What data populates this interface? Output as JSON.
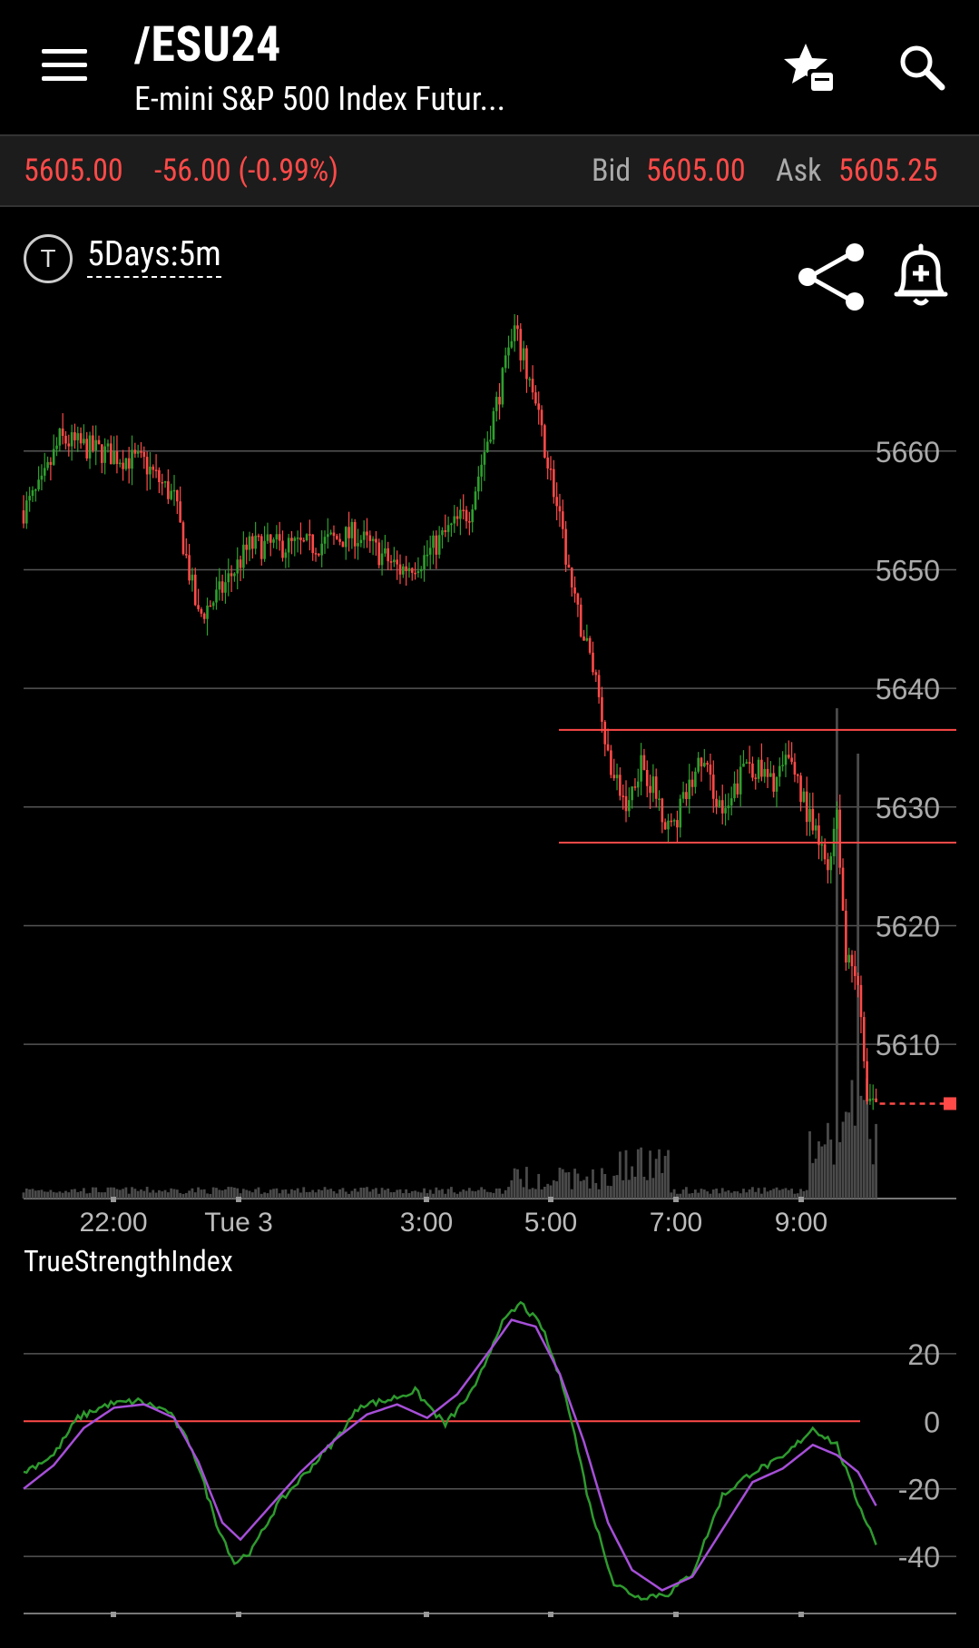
{
  "header": {
    "symbol": "/ESU24",
    "name": "E-mini S&P 500 Index Futur..."
  },
  "quote": {
    "last": "5605.00",
    "change": "-56.00 (-0.99%)",
    "bid_label": "Bid",
    "bid": "5605.00",
    "ask_label": "Ask",
    "ask": "5605.25"
  },
  "chart_controls": {
    "period_icon_letter": "T",
    "period": "5Days:5m"
  },
  "colors": {
    "up": "#2ea02e",
    "down": "#ff4a48",
    "grid": "#555555",
    "tsi_line": "#2e9a2e",
    "tsi_signal": "#a64fd8"
  },
  "icons": [
    "menu-icon",
    "watchlist-star-icon",
    "search-icon",
    "share-icon",
    "add-alert-bell-icon"
  ],
  "chart_data": [
    {
      "type": "candlestick",
      "y_ticks": [
        5660,
        5650,
        5640,
        5630,
        5620,
        5610
      ],
      "ylim": [
        5597,
        5672
      ],
      "x_ticks": [
        "22:00",
        "Tue 3",
        "3:00",
        "5:00",
        "7:00",
        "9:00"
      ],
      "last_price": 5605.0,
      "horizontal_lines": [
        5636.5,
        5627.0
      ],
      "anchors": [
        [
          0,
          5655
        ],
        [
          6,
          5657
        ],
        [
          12,
          5661
        ],
        [
          25,
          5660
        ],
        [
          40,
          5659
        ],
        [
          50,
          5656
        ],
        [
          58,
          5646
        ],
        [
          65,
          5648
        ],
        [
          75,
          5652
        ],
        [
          95,
          5652
        ],
        [
          110,
          5653
        ],
        [
          125,
          5650
        ],
        [
          133,
          5651
        ],
        [
          140,
          5653
        ],
        [
          148,
          5655
        ],
        [
          158,
          5665
        ],
        [
          163,
          5670
        ],
        [
          168,
          5666
        ],
        [
          175,
          5658
        ],
        [
          183,
          5647
        ],
        [
          190,
          5641
        ],
        [
          195,
          5633
        ],
        [
          200,
          5630
        ],
        [
          205,
          5634
        ],
        [
          215,
          5628
        ],
        [
          225,
          5634
        ],
        [
          233,
          5629
        ],
        [
          240,
          5634
        ],
        [
          248,
          5632
        ],
        [
          255,
          5634
        ],
        [
          262,
          5628
        ],
        [
          267,
          5625
        ],
        [
          270,
          5630
        ],
        [
          273,
          5617
        ],
        [
          277,
          5615
        ],
        [
          280,
          5605
        ],
        [
          283,
          5605
        ]
      ],
      "total_bars": 284
    },
    {
      "type": "line",
      "title": "TrueStrengthIndex",
      "y_ticks": [
        20,
        0,
        -20,
        -40
      ],
      "ylim": [
        -55,
        35
      ],
      "zero_line": 0,
      "series": [
        {
          "values": [
            [
              0,
              -15
            ],
            [
              10,
              -10
            ],
            [
              18,
              1
            ],
            [
              28,
              5
            ],
            [
              38,
              6
            ],
            [
              48,
              3
            ],
            [
              56,
              -8
            ],
            [
              64,
              -30
            ],
            [
              70,
              -42
            ],
            [
              76,
              -38
            ],
            [
              84,
              -25
            ],
            [
              94,
              -15
            ],
            [
              104,
              -5
            ],
            [
              112,
              5
            ],
            [
              120,
              6
            ],
            [
              130,
              9
            ],
            [
              140,
              -1
            ],
            [
              150,
              10
            ],
            [
              158,
              28
            ],
            [
              165,
              35
            ],
            [
              172,
              28
            ],
            [
              180,
              8
            ],
            [
              188,
              -25
            ],
            [
              196,
              -48
            ],
            [
              204,
              -52
            ],
            [
              214,
              -51
            ],
            [
              222,
              -45
            ],
            [
              232,
              -22
            ],
            [
              242,
              -15
            ],
            [
              252,
              -11
            ],
            [
              262,
              -2
            ],
            [
              270,
              -7
            ],
            [
              276,
              -22
            ],
            [
              283,
              -36
            ]
          ]
        },
        {
          "values": [
            [
              0,
              -20
            ],
            [
              10,
              -13
            ],
            [
              20,
              -2
            ],
            [
              30,
              4
            ],
            [
              40,
              5
            ],
            [
              50,
              1
            ],
            [
              58,
              -12
            ],
            [
              66,
              -30
            ],
            [
              72,
              -35
            ],
            [
              80,
              -27
            ],
            [
              92,
              -15
            ],
            [
              104,
              -5
            ],
            [
              114,
              2
            ],
            [
              124,
              5
            ],
            [
              134,
              1
            ],
            [
              144,
              8
            ],
            [
              154,
              20
            ],
            [
              162,
              30
            ],
            [
              170,
              28
            ],
            [
              178,
              14
            ],
            [
              186,
              -6
            ],
            [
              194,
              -30
            ],
            [
              202,
              -44
            ],
            [
              212,
              -50
            ],
            [
              222,
              -46
            ],
            [
              232,
              -32
            ],
            [
              242,
              -18
            ],
            [
              252,
              -14
            ],
            [
              262,
              -7
            ],
            [
              270,
              -10
            ],
            [
              277,
              -15
            ],
            [
              283,
              -25
            ]
          ]
        }
      ]
    }
  ]
}
